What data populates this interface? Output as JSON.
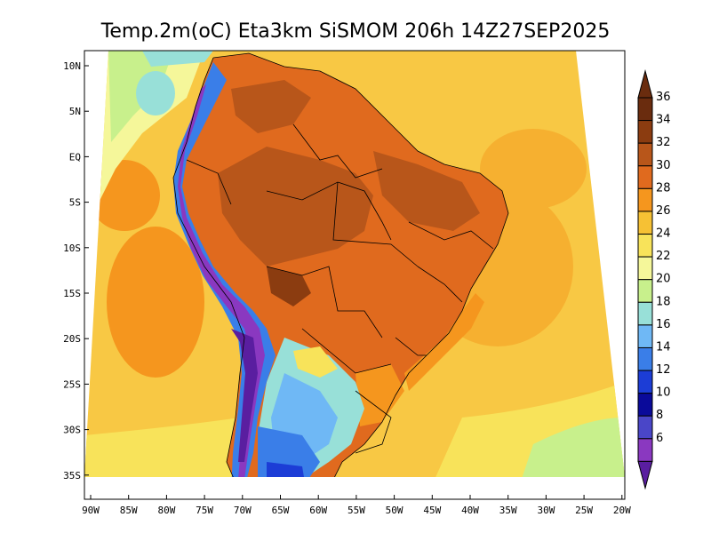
{
  "title": "Temp.2m(oC) Eta3km SiSMOM 206h 14Z27SEP2025",
  "map": {
    "lat_labels": [
      "10N",
      "5N",
      "EQ",
      "5S",
      "10S",
      "15S",
      "20S",
      "25S",
      "30S",
      "35S"
    ],
    "lon_labels": [
      "90W",
      "85W",
      "80W",
      "75W",
      "70W",
      "65W",
      "60W",
      "55W",
      "50W",
      "45W",
      "40W",
      "35W",
      "30W",
      "25W",
      "20W"
    ],
    "lat_range": [
      10,
      -36
    ],
    "lon_range": [
      -90,
      -20
    ],
    "projection": "lambert-like"
  },
  "colorbar": {
    "unit": "oC",
    "labels": [
      "36",
      "34",
      "32",
      "30",
      "28",
      "26",
      "24",
      "22",
      "20",
      "18",
      "16",
      "14",
      "12",
      "10",
      "8",
      "6"
    ],
    "colors": [
      "#6a2c0e",
      "#8b3c10",
      "#b8561a",
      "#e06a1e",
      "#f5961e",
      "#f6c134",
      "#f8e35a",
      "#f5f79a",
      "#c8f08c",
      "#98e0d8",
      "#6fb8f5",
      "#3a7ee8",
      "#1c3dd6",
      "#0a0a9a",
      "#4a46c8",
      "#8a38c0",
      "#5a1ea0"
    ]
  }
}
